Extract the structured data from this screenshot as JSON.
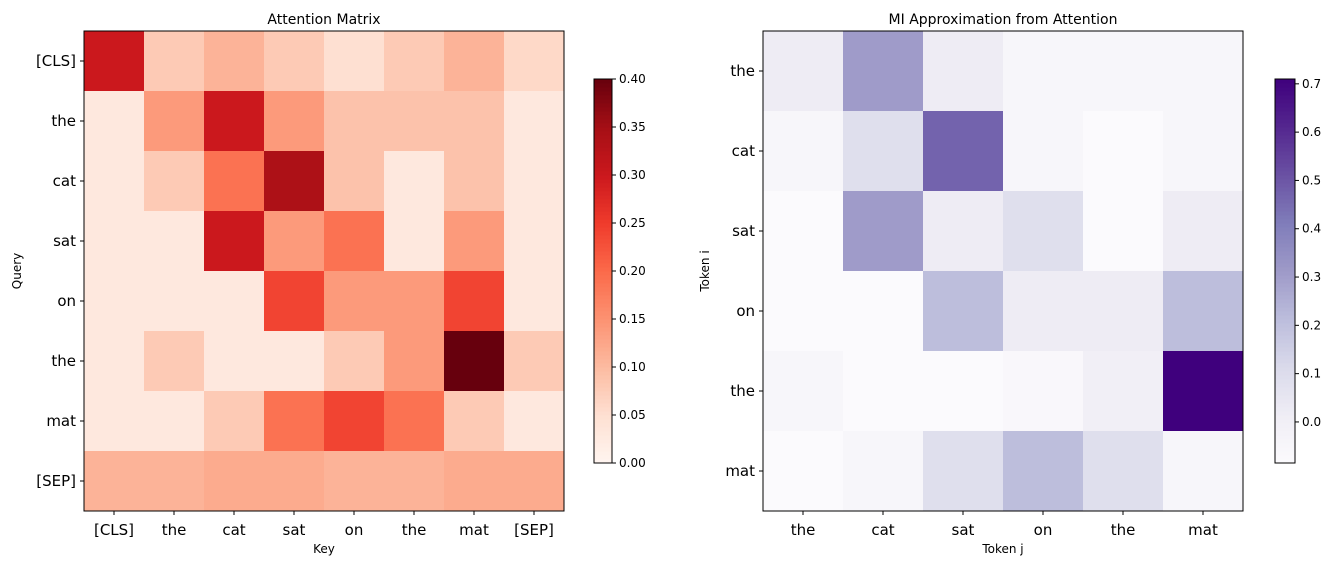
{
  "chart_data": [
    {
      "type": "heatmap",
      "title": "Attention Matrix",
      "xlabel": "Key",
      "ylabel": "Query",
      "x_categories": [
        "[CLS]",
        "the",
        "cat",
        "sat",
        "on",
        "the",
        "mat",
        "[SEP]"
      ],
      "y_categories": [
        "[CLS]",
        "the",
        "cat",
        "sat",
        "on",
        "the",
        "mat",
        "[SEP]"
      ],
      "colormap": "Reds",
      "vmin": 0.0,
      "vmax": 0.4,
      "colorbar_ticks": [
        "0.00",
        "0.05",
        "0.10",
        "0.15",
        "0.20",
        "0.25",
        "0.30",
        "0.35",
        "0.40"
      ],
      "values": [
        [
          0.3,
          0.08,
          0.11,
          0.08,
          0.05,
          0.08,
          0.11,
          0.06
        ],
        [
          0.03,
          0.14,
          0.3,
          0.14,
          0.09,
          0.09,
          0.09,
          0.03
        ],
        [
          0.03,
          0.08,
          0.19,
          0.34,
          0.09,
          0.03,
          0.09,
          0.03
        ],
        [
          0.03,
          0.03,
          0.3,
          0.14,
          0.19,
          0.03,
          0.14,
          0.03
        ],
        [
          0.03,
          0.03,
          0.03,
          0.24,
          0.14,
          0.14,
          0.24,
          0.03
        ],
        [
          0.03,
          0.08,
          0.03,
          0.03,
          0.08,
          0.14,
          0.4,
          0.08
        ],
        [
          0.03,
          0.03,
          0.08,
          0.19,
          0.24,
          0.19,
          0.08,
          0.03
        ],
        [
          0.11,
          0.11,
          0.12,
          0.12,
          0.11,
          0.11,
          0.12,
          0.12
        ]
      ]
    },
    {
      "type": "heatmap",
      "title": "MI Approximation from Attention",
      "xlabel": "Token j",
      "ylabel": "Token i",
      "x_categories": [
        "the",
        "cat",
        "sat",
        "on",
        "the",
        "mat"
      ],
      "y_categories": [
        "the",
        "cat",
        "sat",
        "on",
        "the",
        "mat"
      ],
      "colormap": "Purples",
      "vmin": -0.085,
      "vmax": 0.71,
      "colorbar_ticks": [
        "0.0",
        "0.1",
        "0.2",
        "0.3",
        "0.4",
        "0.5",
        "0.6",
        "0.7"
      ],
      "values": [
        [
          0.02,
          0.31,
          0.02,
          -0.05,
          -0.05,
          -0.05
        ],
        [
          -0.05,
          0.09,
          0.47,
          -0.05,
          -0.08,
          -0.05
        ],
        [
          -0.08,
          0.31,
          0.02,
          0.09,
          -0.08,
          0.02
        ],
        [
          -0.08,
          -0.08,
          0.21,
          0.02,
          0.02,
          0.21
        ],
        [
          -0.05,
          -0.08,
          -0.08,
          -0.06,
          0.0,
          0.71
        ],
        [
          -0.08,
          -0.05,
          0.09,
          0.21,
          0.09,
          -0.05
        ]
      ]
    }
  ]
}
